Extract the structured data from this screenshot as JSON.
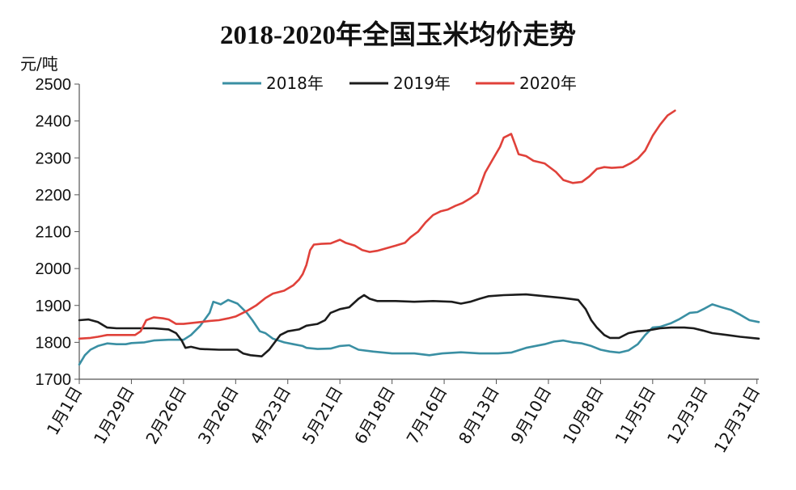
{
  "chart_data": {
    "type": "line",
    "title": "2018-2020年全国玉米均价走势",
    "ylabel": "元/吨",
    "ylim": [
      1700,
      2500
    ],
    "yticks": [
      1700,
      1800,
      1900,
      2000,
      2100,
      2200,
      2300,
      2400,
      2500
    ],
    "xlim": [
      0,
      365
    ],
    "x_tick_labels": [
      "1月1日",
      "1月29日",
      "2月26日",
      "3月26日",
      "4月23日",
      "5月21日",
      "6月18日",
      "7月16日",
      "8月13日",
      "9月10日",
      "10月8日",
      "11月5日",
      "12月3日",
      "12月31日"
    ],
    "x_tick_days": [
      0,
      28,
      56,
      84,
      112,
      140,
      168,
      196,
      224,
      252,
      280,
      308,
      336,
      364
    ],
    "legend_position": "top",
    "grid": false,
    "series": [
      {
        "name": "2018年",
        "color": "#3a8fa3",
        "points": [
          [
            0,
            1740
          ],
          [
            3,
            1765
          ],
          [
            6,
            1780
          ],
          [
            10,
            1790
          ],
          [
            15,
            1797
          ],
          [
            20,
            1795
          ],
          [
            25,
            1795
          ],
          [
            28,
            1798
          ],
          [
            35,
            1800
          ],
          [
            40,
            1805
          ],
          [
            48,
            1807
          ],
          [
            56,
            1807
          ],
          [
            60,
            1820
          ],
          [
            65,
            1845
          ],
          [
            70,
            1880
          ],
          [
            72,
            1910
          ],
          [
            76,
            1903
          ],
          [
            80,
            1915
          ],
          [
            85,
            1905
          ],
          [
            90,
            1880
          ],
          [
            93,
            1860
          ],
          [
            97,
            1830
          ],
          [
            100,
            1825
          ],
          [
            104,
            1810
          ],
          [
            110,
            1800
          ],
          [
            115,
            1795
          ],
          [
            120,
            1790
          ],
          [
            122,
            1785
          ],
          [
            128,
            1782
          ],
          [
            135,
            1783
          ],
          [
            140,
            1790
          ],
          [
            145,
            1792
          ],
          [
            150,
            1780
          ],
          [
            158,
            1775
          ],
          [
            168,
            1770
          ],
          [
            180,
            1770
          ],
          [
            188,
            1765
          ],
          [
            195,
            1770
          ],
          [
            205,
            1773
          ],
          [
            215,
            1770
          ],
          [
            225,
            1770
          ],
          [
            232,
            1772
          ],
          [
            240,
            1785
          ],
          [
            250,
            1795
          ],
          [
            255,
            1802
          ],
          [
            260,
            1805
          ],
          [
            265,
            1800
          ],
          [
            270,
            1797
          ],
          [
            275,
            1790
          ],
          [
            280,
            1780
          ],
          [
            285,
            1775
          ],
          [
            290,
            1772
          ],
          [
            295,
            1778
          ],
          [
            300,
            1795
          ],
          [
            304,
            1820
          ],
          [
            308,
            1840
          ],
          [
            312,
            1842
          ],
          [
            318,
            1852
          ],
          [
            322,
            1862
          ],
          [
            328,
            1880
          ],
          [
            332,
            1882
          ],
          [
            336,
            1892
          ],
          [
            340,
            1903
          ],
          [
            345,
            1895
          ],
          [
            350,
            1888
          ],
          [
            355,
            1875
          ],
          [
            360,
            1860
          ],
          [
            365,
            1855
          ]
        ]
      },
      {
        "name": "2019年",
        "color": "#1c1c1c",
        "points": [
          [
            0,
            1860
          ],
          [
            5,
            1862
          ],
          [
            10,
            1855
          ],
          [
            15,
            1840
          ],
          [
            20,
            1838
          ],
          [
            30,
            1838
          ],
          [
            40,
            1838
          ],
          [
            48,
            1835
          ],
          [
            52,
            1825
          ],
          [
            55,
            1805
          ],
          [
            57,
            1785
          ],
          [
            60,
            1788
          ],
          [
            65,
            1782
          ],
          [
            75,
            1780
          ],
          [
            85,
            1780
          ],
          [
            88,
            1770
          ],
          [
            92,
            1765
          ],
          [
            98,
            1762
          ],
          [
            102,
            1780
          ],
          [
            105,
            1800
          ],
          [
            108,
            1820
          ],
          [
            112,
            1830
          ],
          [
            118,
            1835
          ],
          [
            122,
            1845
          ],
          [
            128,
            1850
          ],
          [
            132,
            1860
          ],
          [
            135,
            1880
          ],
          [
            140,
            1890
          ],
          [
            145,
            1895
          ],
          [
            150,
            1918
          ],
          [
            153,
            1928
          ],
          [
            156,
            1918
          ],
          [
            160,
            1912
          ],
          [
            170,
            1912
          ],
          [
            180,
            1910
          ],
          [
            190,
            1912
          ],
          [
            200,
            1910
          ],
          [
            205,
            1905
          ],
          [
            210,
            1910
          ],
          [
            215,
            1918
          ],
          [
            220,
            1925
          ],
          [
            228,
            1928
          ],
          [
            240,
            1930
          ],
          [
            250,
            1925
          ],
          [
            260,
            1920
          ],
          [
            268,
            1915
          ],
          [
            272,
            1890
          ],
          [
            275,
            1860
          ],
          [
            278,
            1840
          ],
          [
            282,
            1820
          ],
          [
            285,
            1812
          ],
          [
            290,
            1812
          ],
          [
            295,
            1825
          ],
          [
            300,
            1830
          ],
          [
            305,
            1832
          ],
          [
            312,
            1838
          ],
          [
            318,
            1840
          ],
          [
            325,
            1840
          ],
          [
            330,
            1838
          ],
          [
            335,
            1832
          ],
          [
            340,
            1825
          ],
          [
            348,
            1820
          ],
          [
            355,
            1815
          ],
          [
            365,
            1810
          ]
        ]
      },
      {
        "name": "2020年",
        "color": "#e0413a",
        "points": [
          [
            0,
            1810
          ],
          [
            6,
            1812
          ],
          [
            10,
            1815
          ],
          [
            15,
            1820
          ],
          [
            20,
            1820
          ],
          [
            25,
            1820
          ],
          [
            30,
            1820
          ],
          [
            33,
            1830
          ],
          [
            36,
            1860
          ],
          [
            40,
            1868
          ],
          [
            45,
            1865
          ],
          [
            48,
            1862
          ],
          [
            52,
            1850
          ],
          [
            56,
            1850
          ],
          [
            60,
            1852
          ],
          [
            65,
            1855
          ],
          [
            70,
            1858
          ],
          [
            75,
            1860
          ],
          [
            80,
            1865
          ],
          [
            84,
            1870
          ],
          [
            90,
            1885
          ],
          [
            95,
            1900
          ],
          [
            100,
            1920
          ],
          [
            104,
            1932
          ],
          [
            110,
            1940
          ],
          [
            115,
            1955
          ],
          [
            118,
            1970
          ],
          [
            120,
            1985
          ],
          [
            122,
            2010
          ],
          [
            124,
            2050
          ],
          [
            126,
            2065
          ],
          [
            130,
            2067
          ],
          [
            135,
            2068
          ],
          [
            140,
            2078
          ],
          [
            143,
            2070
          ],
          [
            148,
            2062
          ],
          [
            152,
            2050
          ],
          [
            156,
            2045
          ],
          [
            160,
            2048
          ],
          [
            165,
            2055
          ],
          [
            170,
            2062
          ],
          [
            175,
            2070
          ],
          [
            178,
            2085
          ],
          [
            182,
            2100
          ],
          [
            186,
            2125
          ],
          [
            190,
            2145
          ],
          [
            194,
            2155
          ],
          [
            198,
            2160
          ],
          [
            202,
            2170
          ],
          [
            206,
            2178
          ],
          [
            210,
            2190
          ],
          [
            214,
            2205
          ],
          [
            218,
            2260
          ],
          [
            222,
            2295
          ],
          [
            226,
            2330
          ],
          [
            228,
            2355
          ],
          [
            230,
            2360
          ],
          [
            232,
            2365
          ],
          [
            234,
            2338
          ],
          [
            236,
            2310
          ],
          [
            240,
            2305
          ],
          [
            244,
            2292
          ],
          [
            250,
            2285
          ],
          [
            256,
            2262
          ],
          [
            260,
            2240
          ],
          [
            265,
            2232
          ],
          [
            270,
            2235
          ],
          [
            274,
            2250
          ],
          [
            278,
            2270
          ],
          [
            282,
            2275
          ],
          [
            286,
            2273
          ],
          [
            292,
            2275
          ],
          [
            296,
            2285
          ],
          [
            300,
            2298
          ],
          [
            304,
            2320
          ],
          [
            308,
            2360
          ],
          [
            312,
            2390
          ],
          [
            316,
            2415
          ],
          [
            320,
            2428
          ]
        ]
      }
    ]
  }
}
